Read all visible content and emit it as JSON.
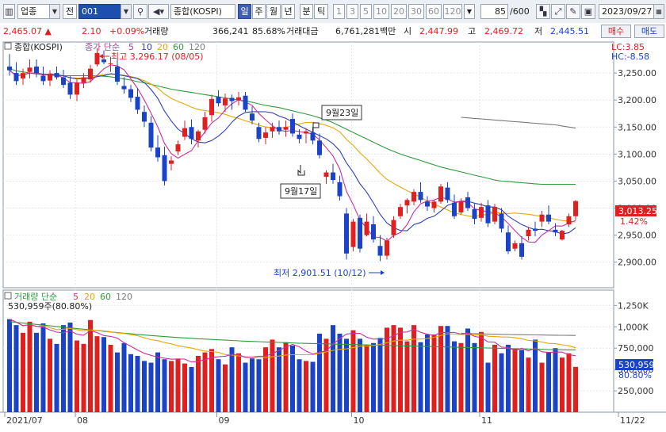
{
  "toolbar": {
    "market": "업종",
    "prev_label": "전",
    "code": "001",
    "name": "종합(KOSPI)",
    "periods": [
      "일",
      "주",
      "월",
      "년",
      "분",
      "틱"
    ],
    "active_period": "일",
    "intervals": [
      "1",
      "3",
      "5",
      "10",
      "20",
      "30",
      "60",
      "120"
    ],
    "count": "85",
    "total": "/600",
    "date": "2023/09/27"
  },
  "quote": {
    "price": "2,465.07",
    "change": "2.10",
    "change_pct": "+0.09%",
    "volume_label": "거래량",
    "volume": "366,241",
    "volume_pct": "85.68%",
    "amount_label": "거래대금",
    "amount": "6,761,281백만",
    "open_label": "시",
    "open": "2,447.99",
    "high_label": "고",
    "high": "2,469.72",
    "low_label": "저",
    "low": "2,445.51",
    "buy_label": "매수",
    "sell_label": "매도"
  },
  "colors": {
    "up": "#e0201f",
    "down": "#1a43c8",
    "ma5": "#cc2f9f",
    "ma10": "#2f3fb5",
    "ma20": "#e8a800",
    "ma60": "#2e9b3c",
    "ma120": "#7a7a7a"
  },
  "chart_data": [
    {
      "type": "candlestick",
      "title": "종합(KOSPI)",
      "legend": [
        "종가 단순",
        "5",
        "10",
        "20",
        "60",
        "120"
      ],
      "ylim": [
        2860,
        3300
      ],
      "y_ticks": [
        "3,250.00",
        "3,200.00",
        "3,150.00",
        "3,100.00",
        "3,050.00",
        "3,000.00",
        "2,950.00",
        "2,900.00"
      ],
      "y_tick_values": [
        3250,
        3200,
        3150,
        3100,
        3050,
        3000,
        2950,
        2900
      ],
      "x_labels": [
        "2021/07",
        "08",
        "09",
        "10",
        "11",
        "11/22"
      ],
      "lc_label": "LC:3.85",
      "hc_label": "HC:-8.58",
      "last_price_label": "3,013.25",
      "last_pct_label": "1.42%",
      "annotations": {
        "high": "최고 3,296.17 (08/05)",
        "low": "최저 2,901.51 (10/12)",
        "sep23": "9월23일",
        "sep17": "9월17일"
      },
      "ohlc": [
        [
          3262,
          3285,
          3245,
          3255
        ],
        [
          3250,
          3270,
          3228,
          3235
        ],
        [
          3240,
          3258,
          3228,
          3250
        ],
        [
          3252,
          3275,
          3240,
          3260
        ],
        [
          3262,
          3275,
          3242,
          3250
        ],
        [
          3245,
          3262,
          3228,
          3235
        ],
        [
          3236,
          3255,
          3226,
          3248
        ],
        [
          3250,
          3262,
          3238,
          3242
        ],
        [
          3242,
          3256,
          3222,
          3228
        ],
        [
          3232,
          3244,
          3202,
          3210
        ],
        [
          3210,
          3238,
          3198,
          3232
        ],
        [
          3232,
          3250,
          3222,
          3242
        ],
        [
          3238,
          3265,
          3232,
          3258
        ],
        [
          3266,
          3296,
          3262,
          3287
        ],
        [
          3275,
          3292,
          3266,
          3270
        ],
        [
          3268,
          3280,
          3252,
          3268
        ],
        [
          3262,
          3275,
          3228,
          3234
        ],
        [
          3226,
          3242,
          3212,
          3220
        ],
        [
          3220,
          3228,
          3196,
          3204
        ],
        [
          3206,
          3222,
          3174,
          3182
        ],
        [
          3178,
          3190,
          3150,
          3160
        ],
        [
          3158,
          3170,
          3105,
          3112
        ],
        [
          3112,
          3135,
          3086,
          3094
        ],
        [
          3098,
          3114,
          3042,
          3050
        ],
        [
          3082,
          3096,
          3070,
          3088
        ],
        [
          3105,
          3125,
          3098,
          3118
        ],
        [
          3132,
          3162,
          3126,
          3148
        ],
        [
          3150,
          3164,
          3118,
          3128
        ],
        [
          3125,
          3145,
          3112,
          3142
        ],
        [
          3145,
          3178,
          3138,
          3168
        ],
        [
          3172,
          3210,
          3160,
          3202
        ],
        [
          3206,
          3218,
          3188,
          3194
        ],
        [
          3190,
          3212,
          3178,
          3203
        ],
        [
          3204,
          3210,
          3182,
          3198
        ],
        [
          3200,
          3215,
          3190,
          3205
        ],
        [
          3208,
          3215,
          3178,
          3182
        ],
        [
          3175,
          3188,
          3155,
          3162
        ],
        [
          3150,
          3158,
          3122,
          3128
        ],
        [
          3130,
          3150,
          3118,
          3140
        ],
        [
          3142,
          3158,
          3130,
          3150
        ],
        [
          3150,
          3162,
          3136,
          3142
        ],
        [
          3145,
          3162,
          3132,
          3150
        ],
        [
          3165,
          3175,
          3132,
          3138
        ],
        [
          3136,
          3146,
          3120,
          3128
        ],
        [
          3138,
          3148,
          3120,
          3142
        ],
        [
          3140,
          3150,
          3118,
          3125
        ],
        [
          3125,
          3138,
          3092,
          3098
        ],
        [
          3058,
          3070,
          3045,
          3066
        ],
        [
          3066,
          3082,
          3045,
          3052
        ],
        [
          3048,
          3060,
          3014,
          3022
        ],
        [
          2990,
          3000,
          2905,
          2916
        ],
        [
          2928,
          2980,
          2920,
          2975
        ],
        [
          2982,
          2988,
          2918,
          2925
        ],
        [
          2950,
          2990,
          2948,
          2975
        ],
        [
          2970,
          2985,
          2936,
          2942
        ],
        [
          2930,
          2950,
          2902,
          2912
        ],
        [
          2912,
          2945,
          2905,
          2940
        ],
        [
          2950,
          2985,
          2945,
          2978
        ],
        [
          2985,
          3008,
          2980,
          3002
        ],
        [
          3005,
          3018,
          2990,
          3015
        ],
        [
          3012,
          3035,
          3005,
          3030
        ],
        [
          3030,
          3048,
          3010,
          3015
        ],
        [
          3012,
          3022,
          2995,
          3003
        ],
        [
          3000,
          3015,
          2992,
          3012
        ],
        [
          3012,
          3045,
          3008,
          3040
        ],
        [
          3038,
          3048,
          3010,
          3015
        ],
        [
          3010,
          3025,
          2980,
          2985
        ],
        [
          2992,
          3018,
          2988,
          3012
        ],
        [
          3020,
          3030,
          2995,
          3000
        ],
        [
          2998,
          3008,
          2970,
          2980
        ],
        [
          2982,
          3010,
          2975,
          3002
        ],
        [
          3005,
          3015,
          2965,
          2972
        ],
        [
          2975,
          3008,
          2970,
          3002
        ],
        [
          2990,
          3000,
          2955,
          2962
        ],
        [
          2955,
          2968,
          2915,
          2920
        ],
        [
          2925,
          2940,
          2920,
          2935
        ],
        [
          2935,
          2948,
          2905,
          2910
        ],
        [
          2948,
          2965,
          2940,
          2960
        ],
        [
          2962,
          2975,
          2948,
          2958
        ],
        [
          2975,
          2995,
          2965,
          2988
        ],
        [
          2988,
          3005,
          2970,
          2975
        ],
        [
          2960,
          2972,
          2948,
          2955
        ],
        [
          2942,
          2960,
          2940,
          2958
        ],
        [
          2970,
          2990,
          2965,
          2985
        ],
        [
          2985,
          3015,
          2978,
          3013
        ]
      ],
      "ma60": [
        3258,
        3254,
        3252,
        3250,
        3248,
        3247,
        3246,
        3245,
        3245,
        3245,
        3245,
        3245,
        3245,
        3245,
        3244,
        3243,
        3241,
        3239,
        3237,
        3234,
        3232,
        3229,
        3226,
        3223,
        3220,
        3218,
        3216,
        3214,
        3212,
        3210,
        3208,
        3206,
        3204,
        3202,
        3200,
        3198,
        3196,
        3193,
        3190,
        3188,
        3186,
        3183,
        3180,
        3177,
        3174,
        3171,
        3167,
        3163,
        3158,
        3152,
        3146,
        3140,
        3134,
        3128,
        3122,
        3116,
        3110,
        3105,
        3100,
        3096,
        3092,
        3088,
        3084,
        3080,
        3076,
        3073,
        3070,
        3067,
        3064,
        3061,
        3058,
        3055,
        3052,
        3050,
        3049,
        3048,
        3047,
        3046,
        3045,
        3044,
        3044,
        3044,
        3044,
        3044,
        3044
      ],
      "ma120": [
        null,
        null,
        null,
        null,
        null,
        null,
        null,
        null,
        null,
        null,
        null,
        null,
        null,
        null,
        null,
        null,
        null,
        null,
        null,
        null,
        null,
        null,
        null,
        null,
        null,
        null,
        null,
        null,
        null,
        null,
        null,
        null,
        null,
        null,
        null,
        null,
        null,
        null,
        null,
        null,
        null,
        null,
        null,
        null,
        null,
        null,
        null,
        null,
        null,
        null,
        null,
        null,
        null,
        null,
        null,
        null,
        null,
        null,
        null,
        null,
        null,
        null,
        null,
        null,
        null,
        null,
        null,
        3168,
        3167,
        3166,
        3165,
        3164,
        3163,
        3162,
        3161,
        3160,
        3159,
        3158,
        3157,
        3156,
        3155,
        3154,
        3152,
        3150,
        3148
      ]
    },
    {
      "type": "bar",
      "title": "거래량",
      "legend": [
        "거래량 단순",
        "5",
        "20",
        "60",
        "120"
      ],
      "max_label": "530,959주(80.80%)",
      "ylim": [
        0,
        1300
      ],
      "y_ticks": [
        "1,250K",
        "1,000K",
        "750,000",
        "500,000",
        "250,000"
      ],
      "y_tick_values": [
        1250,
        1000,
        750,
        500,
        250
      ],
      "last_label": "530,959",
      "last_pct_label": "80.80%",
      "values": [
        1090,
        1020,
        930,
        1060,
        930,
        1040,
        860,
        800,
        1020,
        1050,
        840,
        800,
        1080,
        890,
        880,
        790,
        700,
        810,
        680,
        660,
        600,
        580,
        700,
        620,
        600,
        620,
        570,
        530,
        660,
        700,
        740,
        620,
        560,
        760,
        690,
        580,
        630,
        620,
        760,
        850,
        760,
        820,
        780,
        620,
        600,
        590,
        920,
        860,
        1020,
        920,
        860,
        960,
        860,
        790,
        810,
        870,
        990,
        1020,
        990,
        830,
        1020,
        820,
        910,
        910,
        1010,
        1010,
        830,
        810,
        980,
        810,
        940,
        580,
        790,
        690,
        790,
        740,
        730,
        640,
        850,
        580,
        700,
        750,
        640,
        690,
        531
      ],
      "ma60": [
        1060,
        1052,
        1044,
        1036,
        1028,
        1020,
        1012,
        1004,
        996,
        988,
        980,
        972,
        964,
        956,
        948,
        940,
        932,
        925,
        918,
        911,
        904,
        898,
        892,
        886,
        880,
        875,
        870,
        865,
        860,
        856,
        852,
        848,
        844,
        840,
        836,
        832,
        829,
        826,
        823,
        820,
        817,
        814,
        811,
        808,
        806,
        804,
        802,
        800,
        798,
        796,
        794,
        792,
        790,
        788,
        786,
        784,
        782,
        780,
        778,
        776,
        774,
        772,
        770,
        768,
        766,
        764,
        762,
        760,
        758,
        756,
        754,
        752,
        750,
        748,
        746,
        744,
        742,
        740,
        738,
        736,
        734,
        732,
        731,
        730,
        730
      ],
      "ma120": [
        null,
        null,
        null,
        null,
        null,
        null,
        null,
        null,
        null,
        null,
        null,
        null,
        null,
        null,
        null,
        null,
        null,
        null,
        null,
        null,
        null,
        null,
        null,
        null,
        null,
        null,
        null,
        null,
        null,
        null,
        null,
        null,
        null,
        null,
        null,
        null,
        null,
        null,
        null,
        null,
        null,
        null,
        null,
        null,
        null,
        null,
        null,
        null,
        null,
        null,
        null,
        null,
        null,
        null,
        null,
        null,
        null,
        null,
        null,
        null,
        null,
        null,
        null,
        null,
        null,
        null,
        null,
        925,
        922,
        920,
        918,
        916,
        914,
        912,
        910,
        908,
        907,
        906,
        905,
        904,
        903,
        902,
        901,
        900,
        899
      ]
    }
  ]
}
